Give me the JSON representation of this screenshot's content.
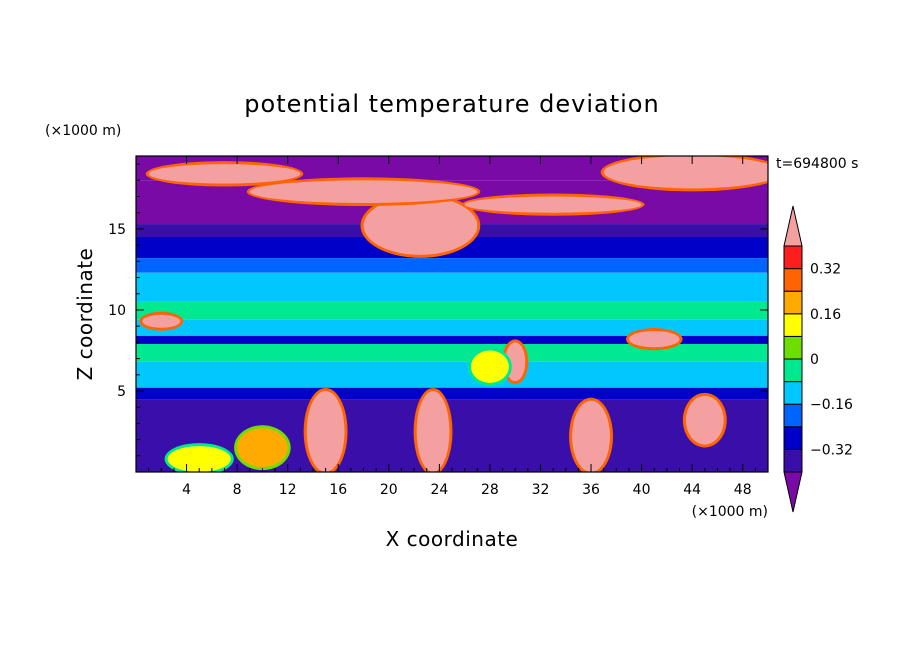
{
  "chart_data": {
    "type": "heatmap",
    "title": "potential temperature deviation",
    "xlabel": "X coordinate",
    "ylabel": "Z coordinate",
    "x_unit": "(×1000 m)",
    "y_unit": "(×1000 m)",
    "time_label": "t=694800 s",
    "xlim": [
      0,
      50
    ],
    "ylim": [
      0,
      19.5
    ],
    "x_ticks": [
      4,
      8,
      12,
      16,
      20,
      24,
      28,
      32,
      36,
      40,
      44,
      48
    ],
    "y_ticks": [
      5,
      10,
      15
    ],
    "colorbar": {
      "levels": [
        -0.4,
        -0.32,
        -0.24,
        -0.16,
        -0.08,
        0,
        0.08,
        0.16,
        0.24,
        0.32,
        0.4
      ],
      "labels": [
        {
          "value": 0.32,
          "text": "0.32"
        },
        {
          "value": 0.16,
          "text": "0.16"
        },
        {
          "value": 0,
          "text": "0"
        },
        {
          "value": -0.16,
          "text": "−0.16"
        },
        {
          "value": -0.32,
          "text": "−0.32"
        }
      ],
      "colors": [
        "#7a0aa6",
        "#3a0ea8",
        "#0000c8",
        "#0064ff",
        "#00c8ff",
        "#00e890",
        "#6ede00",
        "#ffff00",
        "#ffaa00",
        "#ff6400",
        "#ff1e1e",
        "#f5a0a0"
      ],
      "extend": "both"
    },
    "bands": [
      {
        "z": [
          18.0,
          19.5
        ],
        "level": 0
      },
      {
        "z": [
          15.3,
          18.0
        ],
        "level": 0
      },
      {
        "z": [
          14.5,
          15.3
        ],
        "level": 1
      },
      {
        "z": [
          13.2,
          14.5
        ],
        "level": 2
      },
      {
        "z": [
          12.3,
          13.2
        ],
        "level": 3
      },
      {
        "z": [
          10.5,
          12.3
        ],
        "level": 4
      },
      {
        "z": [
          9.4,
          10.5
        ],
        "level": 5
      },
      {
        "z": [
          8.4,
          9.4
        ],
        "level": 4
      },
      {
        "z": [
          7.9,
          8.4
        ],
        "level": 2
      },
      {
        "z": [
          6.8,
          7.9
        ],
        "level": 5
      },
      {
        "z": [
          5.2,
          6.8
        ],
        "level": 4
      },
      {
        "z": [
          4.5,
          5.2
        ],
        "level": 2
      },
      {
        "z": [
          0,
          4.5
        ],
        "level": 1
      }
    ],
    "warm_regions": [
      {
        "x": 22.5,
        "z": 15.2,
        "rx": 4.5,
        "rz": 1.8,
        "level": 11
      },
      {
        "x": 18,
        "z": 17.3,
        "rx": 9,
        "rz": 0.7,
        "level": 11
      },
      {
        "x": 44,
        "z": 18.5,
        "rx": 7,
        "rz": 1.0,
        "level": 11
      },
      {
        "x": 33,
        "z": 16.5,
        "rx": 7,
        "rz": 0.5,
        "level": 11
      },
      {
        "x": 7,
        "z": 18.4,
        "rx": 6,
        "rz": 0.6,
        "level": 11
      },
      {
        "x": 23.5,
        "z": 2.5,
        "rx": 1.3,
        "rz": 2.5,
        "level": 11
      },
      {
        "x": 15,
        "z": 2.5,
        "rx": 1.5,
        "rz": 2.5,
        "level": 11
      },
      {
        "x": 36,
        "z": 2.2,
        "rx": 1.5,
        "rz": 2.2,
        "level": 11
      },
      {
        "x": 45,
        "z": 3.2,
        "rx": 1.5,
        "rz": 1.5,
        "level": 11
      },
      {
        "x": 30,
        "z": 6.8,
        "rx": 0.8,
        "rz": 1.2,
        "level": 11
      },
      {
        "x": 41,
        "z": 8.2,
        "rx": 2.0,
        "rz": 0.5,
        "level": 11
      },
      {
        "x": 2,
        "z": 9.3,
        "rx": 1.5,
        "rz": 0.4,
        "level": 11
      },
      {
        "x": 10,
        "z": 1.5,
        "rx": 2.0,
        "rz": 1.2,
        "level": 8
      },
      {
        "x": 5,
        "z": 0.8,
        "rx": 2.5,
        "rz": 0.8,
        "level": 7
      },
      {
        "x": 28,
        "z": 6.5,
        "rx": 1.5,
        "rz": 1.0,
        "level": 7
      }
    ]
  }
}
